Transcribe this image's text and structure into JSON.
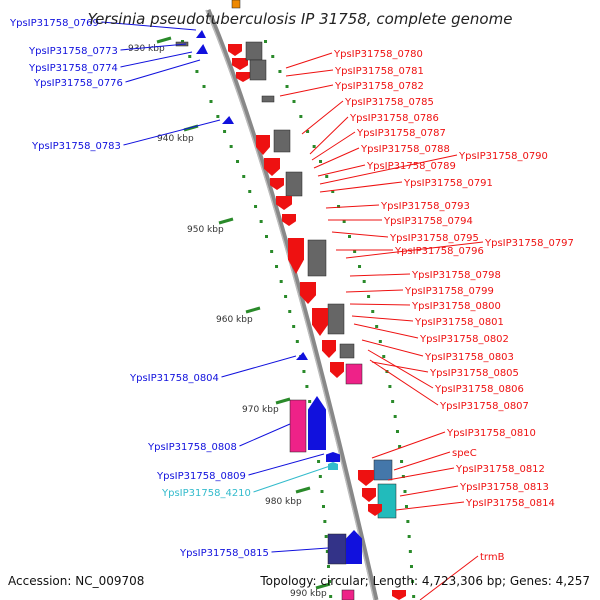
{
  "title": "Yersinia pseudotuberculosis IP 31758, complete genome",
  "accession": "Accession: NC_009708",
  "topology": "Topology: circular; Length: 4,723,306 bp; Genes: 4,257",
  "scale_labels": [
    "930 kbp",
    "940 kbp",
    "950 kbp",
    "960 kbp",
    "970 kbp",
    "980 kbp",
    "990 kbp"
  ],
  "genes_left": [
    {
      "name": "YpsIP31758_0769",
      "strand": "reverse"
    },
    {
      "name": "YpsIP31758_0773",
      "strand": "reverse"
    },
    {
      "name": "YpsIP31758_0774",
      "strand": "reverse"
    },
    {
      "name": "YpsIP31758_0776",
      "strand": "reverse"
    },
    {
      "name": "YpsIP31758_0783",
      "strand": "reverse"
    },
    {
      "name": "YpsIP31758_0804",
      "strand": "reverse"
    },
    {
      "name": "YpsIP31758_0808",
      "strand": "reverse"
    },
    {
      "name": "YpsIP31758_0809",
      "strand": "reverse"
    },
    {
      "name": "YpsIP31758_4210",
      "strand": "reverse",
      "type": "rna"
    },
    {
      "name": "YpsIP31758_0815",
      "strand": "reverse"
    }
  ],
  "genes_right": [
    {
      "name": "YpsIP31758_0780",
      "strand": "forward"
    },
    {
      "name": "YpsIP31758_0781",
      "strand": "forward"
    },
    {
      "name": "YpsIP31758_0782",
      "strand": "forward"
    },
    {
      "name": "YpsIP31758_0785",
      "strand": "forward"
    },
    {
      "name": "YpsIP31758_0786",
      "strand": "forward"
    },
    {
      "name": "YpsIP31758_0787",
      "strand": "forward"
    },
    {
      "name": "YpsIP31758_0788",
      "strand": "forward"
    },
    {
      "name": "YpsIP31758_0789",
      "strand": "forward"
    },
    {
      "name": "YpsIP31758_0790",
      "strand": "forward"
    },
    {
      "name": "YpsIP31758_0791",
      "strand": "forward"
    },
    {
      "name": "YpsIP31758_0793",
      "strand": "forward"
    },
    {
      "name": "YpsIP31758_0794",
      "strand": "forward"
    },
    {
      "name": "YpsIP31758_0795",
      "strand": "forward"
    },
    {
      "name": "YpsIP31758_0796",
      "strand": "forward"
    },
    {
      "name": "YpsIP31758_0797",
      "strand": "forward"
    },
    {
      "name": "YpsIP31758_0798",
      "strand": "forward"
    },
    {
      "name": "YpsIP31758_0799",
      "strand": "forward"
    },
    {
      "name": "YpsIP31758_0800",
      "strand": "forward"
    },
    {
      "name": "YpsIP31758_0801",
      "strand": "forward"
    },
    {
      "name": "YpsIP31758_0802",
      "strand": "forward"
    },
    {
      "name": "YpsIP31758_0803",
      "strand": "forward"
    },
    {
      "name": "YpsIP31758_0805",
      "strand": "forward"
    },
    {
      "name": "YpsIP31758_0806",
      "strand": "forward"
    },
    {
      "name": "YpsIP31758_0807",
      "strand": "forward"
    },
    {
      "name": "YpsIP31758_0810",
      "strand": "forward"
    },
    {
      "name": "speC",
      "strand": "forward"
    },
    {
      "name": "YpsIP31758_0812",
      "strand": "forward"
    },
    {
      "name": "YpsIP31758_0813",
      "strand": "forward"
    },
    {
      "name": "YpsIP31758_0814",
      "strand": "forward"
    },
    {
      "name": "trmB",
      "strand": "forward"
    }
  ],
  "colors": {
    "forward_gene": "#ee1111",
    "reverse_gene": "#1111dd",
    "rna_gene": "#33bbcc",
    "feature_gray": "#666666",
    "feature_pink": "#ee2288",
    "feature_teal": "#22bbbb",
    "feature_steel": "#4477aa",
    "feature_navy": "#333388",
    "scale_tick": "#2a8a2a",
    "backbone": "#888888"
  }
}
